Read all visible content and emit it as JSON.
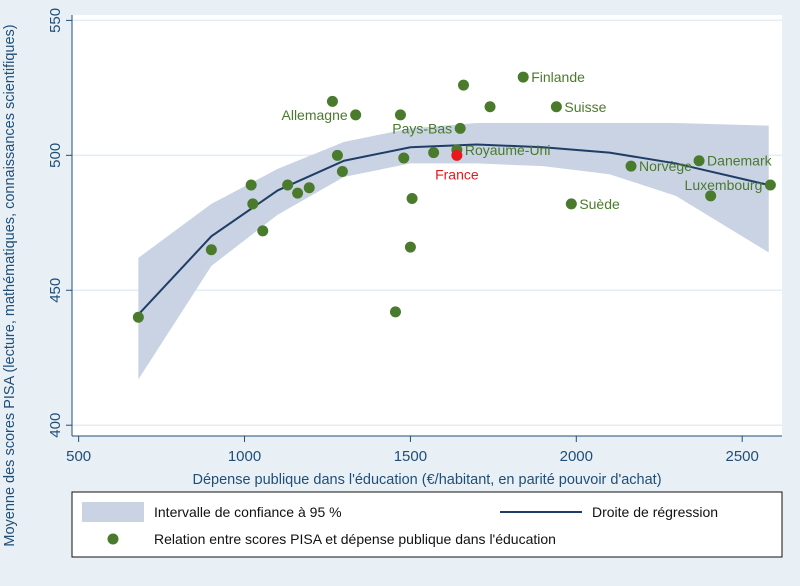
{
  "colors": {
    "background": "#e9f0f5",
    "plot_background": "#ffffff",
    "gridline": "#e4edf3",
    "axis_text": "#1f4e79",
    "point": "#4a7a2c",
    "label": "#4a7a2c",
    "highlight": "#e8191d",
    "band": "#c9d3e3",
    "regression_line": "#1f3e66"
  },
  "chart_data": {
    "type": "scatter",
    "title": "",
    "xlabel": "Dépense publique dans l'éducation (€/habitant, en parité pouvoir d'achat)",
    "ylabel": "Moyenne des scores PISA (lecture, mathématiques, connaissances scientifiques)",
    "xlim": [
      480,
      2620
    ],
    "ylim": [
      396,
      552
    ],
    "xticks": [
      500,
      1000,
      1500,
      2000,
      2500
    ],
    "yticks": [
      400,
      450,
      500,
      550
    ],
    "grid": "horizontal",
    "legend_position": "bottom",
    "points": [
      {
        "x": 680,
        "y": 440,
        "label": ""
      },
      {
        "x": 900,
        "y": 465,
        "label": ""
      },
      {
        "x": 1020,
        "y": 489,
        "label": ""
      },
      {
        "x": 1025,
        "y": 482,
        "label": ""
      },
      {
        "x": 1055,
        "y": 472,
        "label": ""
      },
      {
        "x": 1130,
        "y": 489,
        "label": ""
      },
      {
        "x": 1160,
        "y": 486,
        "label": ""
      },
      {
        "x": 1195,
        "y": 488,
        "label": ""
      },
      {
        "x": 1265,
        "y": 520,
        "label": ""
      },
      {
        "x": 1280,
        "y": 500,
        "label": ""
      },
      {
        "x": 1295,
        "y": 494,
        "label": ""
      },
      {
        "x": 1335,
        "y": 515,
        "label": "Allemagne"
      },
      {
        "x": 1455,
        "y": 442,
        "label": ""
      },
      {
        "x": 1470,
        "y": 515,
        "label": ""
      },
      {
        "x": 1480,
        "y": 499,
        "label": ""
      },
      {
        "x": 1500,
        "y": 466,
        "label": ""
      },
      {
        "x": 1505,
        "y": 484,
        "label": ""
      },
      {
        "x": 1570,
        "y": 501,
        "label": ""
      },
      {
        "x": 1650,
        "y": 510,
        "label": "Pays-Bas"
      },
      {
        "x": 1660,
        "y": 526,
        "label": ""
      },
      {
        "x": 1640,
        "y": 502,
        "label": "Royaume-Uni"
      },
      {
        "x": 1740,
        "y": 518,
        "label": ""
      },
      {
        "x": 1840,
        "y": 529,
        "label": "Finlande"
      },
      {
        "x": 1940,
        "y": 518,
        "label": "Suisse"
      },
      {
        "x": 1985,
        "y": 482,
        "label": "Suède"
      },
      {
        "x": 2165,
        "y": 496,
        "label": "Norvège"
      },
      {
        "x": 2370,
        "y": 498,
        "label": "Danemark"
      },
      {
        "x": 2405,
        "y": 485,
        "label": ""
      },
      {
        "x": 2585,
        "y": 489,
        "label": "Luxembourg"
      }
    ],
    "highlight": {
      "x": 1640,
      "y": 500,
      "label": "France"
    },
    "regression_curve": [
      [
        680,
        441
      ],
      [
        900,
        470
      ],
      [
        1100,
        487
      ],
      [
        1300,
        498
      ],
      [
        1500,
        503
      ],
      [
        1700,
        504
      ],
      [
        1900,
        503
      ],
      [
        2100,
        501
      ],
      [
        2300,
        497
      ],
      [
        2580,
        489
      ]
    ],
    "confidence_band": {
      "x": [
        680,
        900,
        1100,
        1300,
        1500,
        1700,
        1900,
        2100,
        2300,
        2580
      ],
      "upper": [
        462,
        482,
        495,
        505,
        510,
        512,
        512,
        512,
        512,
        511
      ],
      "lower": [
        417,
        459,
        478,
        492,
        497,
        497,
        496,
        493,
        485,
        464
      ]
    },
    "legend": {
      "band": "Intervalle de confiance à 95 %",
      "line": "Droite de régression",
      "points": "Relation entre scores PISA et dépense publique dans l'éducation"
    }
  }
}
